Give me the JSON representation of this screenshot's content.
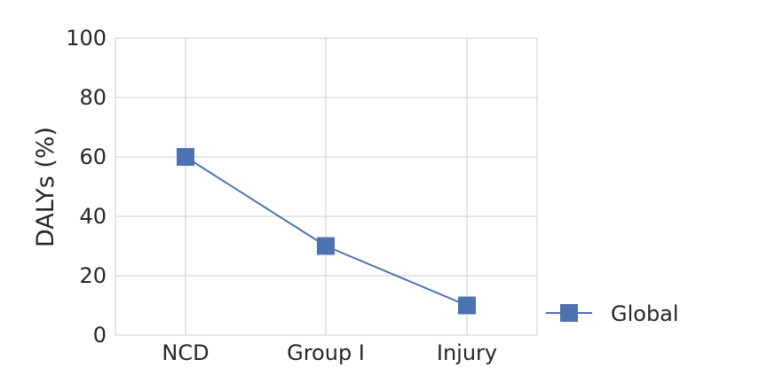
{
  "chart_data": {
    "type": "line",
    "categories": [
      "NCD",
      "Group I",
      "Injury"
    ],
    "series": [
      {
        "name": "Global",
        "values": [
          60,
          30,
          10
        ],
        "color": "#4c72b0",
        "marker": "square"
      }
    ],
    "ylabel": "DALYs (%)",
    "xlabel": "",
    "ylim": [
      0,
      100
    ],
    "yticks": [
      0,
      20,
      40,
      60,
      80,
      100
    ],
    "grid": true,
    "legend_position": "right-bottom"
  }
}
